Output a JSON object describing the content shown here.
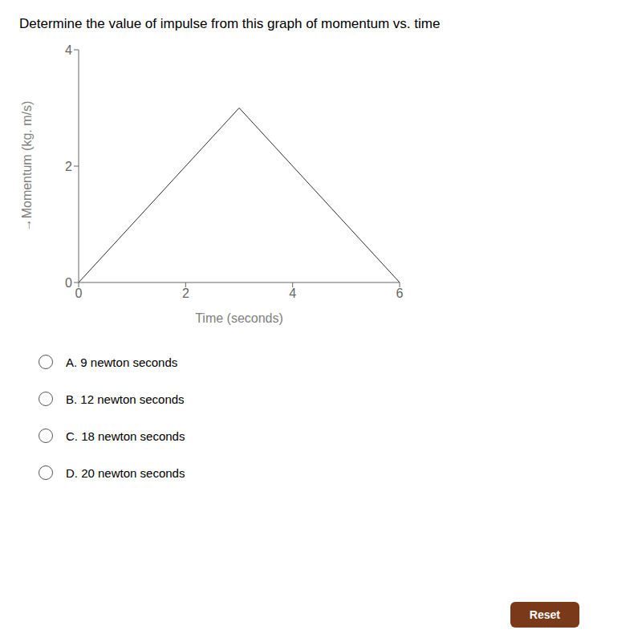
{
  "chart_data": {
    "type": "line",
    "title": "Determine the value of impulse from this graph of momentum vs. time",
    "xlabel": "Time (seconds)",
    "ylabel": "→Momentum (kg. m/s)",
    "x": [
      0,
      3,
      6
    ],
    "values": [
      0,
      3,
      0
    ],
    "color": "#2a2a2a",
    "xlim": [
      0,
      6
    ],
    "ylim": [
      0,
      4
    ],
    "xticks": [
      0,
      2,
      4,
      6
    ],
    "yticks": [
      0,
      2,
      4
    ],
    "grid": false,
    "annotations": [
      "A. 9 newton seconds",
      "B. 12 newton seconds",
      "C. 18 newton seconds",
      "D. 20 newton seconds",
      "Reset"
    ]
  }
}
